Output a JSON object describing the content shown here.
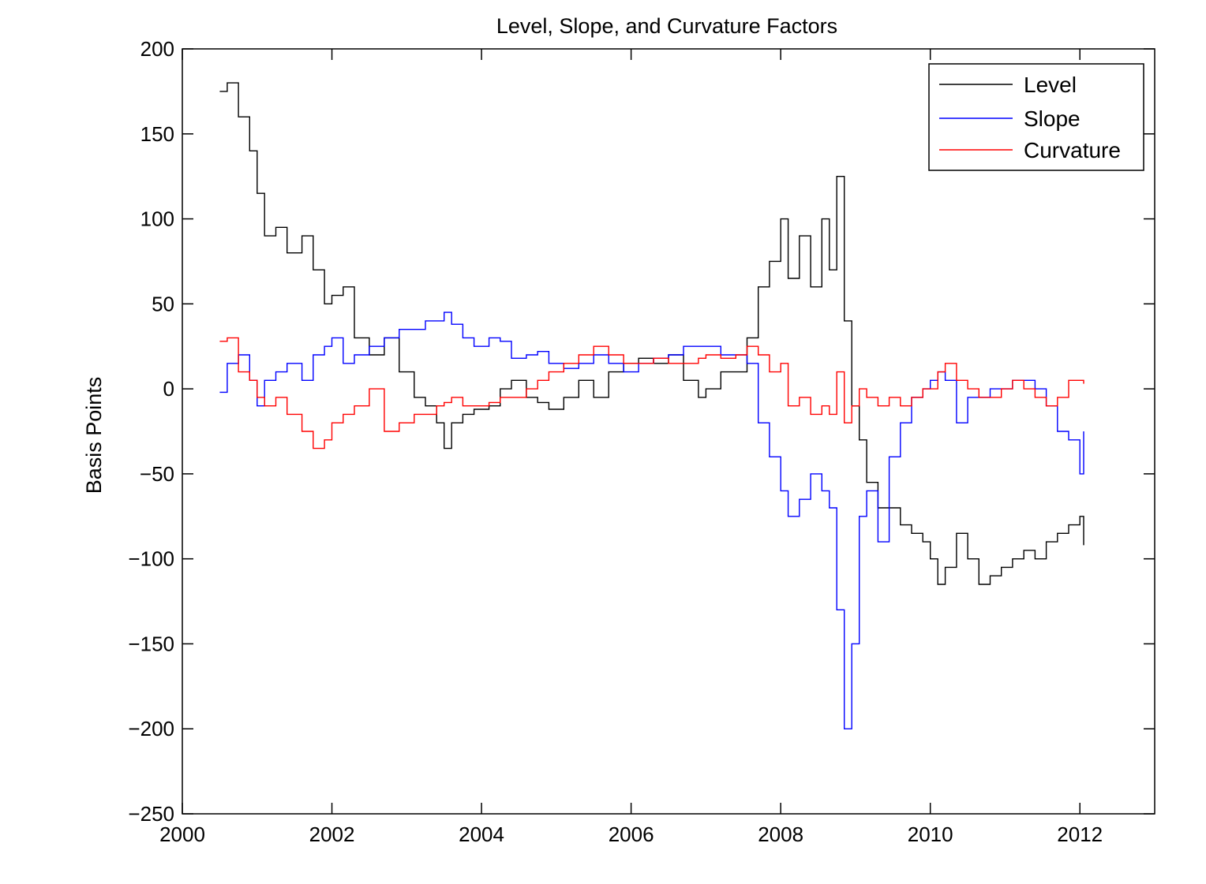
{
  "chart_data": {
    "type": "line",
    "title": "Level, Slope, and Curvature Factors",
    "xlabel": "",
    "ylabel": "Basis Points",
    "xlim": [
      2000,
      2013
    ],
    "ylim": [
      -250,
      200
    ],
    "x_ticks": [
      2000,
      2002,
      2004,
      2006,
      2008,
      2010,
      2012
    ],
    "x_tick_labels": [
      "2000",
      "2002",
      "2004",
      "2006",
      "2008",
      "2010",
      "2012"
    ],
    "y_ticks": [
      200,
      150,
      100,
      50,
      0,
      -50,
      -100,
      -150,
      -200,
      -250
    ],
    "y_tick_labels": [
      "200",
      "150",
      "100",
      "50",
      "0",
      "−50",
      "−100",
      "−150",
      "−200",
      "−250"
    ],
    "grid": false,
    "legend_position": "top-right",
    "series": [
      {
        "name": "Level",
        "color": "#000000",
        "x": [
          2000.5,
          2000.6,
          2000.75,
          2000.9,
          2001.0,
          2001.1,
          2001.25,
          2001.4,
          2001.6,
          2001.75,
          2001.9,
          2002.0,
          2002.15,
          2002.3,
          2002.5,
          2002.7,
          2002.9,
          2003.1,
          2003.25,
          2003.4,
          2003.5,
          2003.6,
          2003.75,
          2003.9,
          2004.1,
          2004.25,
          2004.4,
          2004.6,
          2004.75,
          2004.9,
          2005.1,
          2005.3,
          2005.5,
          2005.7,
          2005.9,
          2006.1,
          2006.3,
          2006.5,
          2006.7,
          2006.9,
          2007.0,
          2007.2,
          2007.4,
          2007.55,
          2007.7,
          2007.85,
          2008.0,
          2008.1,
          2008.25,
          2008.4,
          2008.55,
          2008.65,
          2008.75,
          2008.85,
          2008.95,
          2009.05,
          2009.15,
          2009.3,
          2009.45,
          2009.6,
          2009.75,
          2009.9,
          2010.0,
          2010.1,
          2010.2,
          2010.35,
          2010.5,
          2010.65,
          2010.8,
          2010.95,
          2011.1,
          2011.25,
          2011.4,
          2011.55,
          2011.7,
          2011.85,
          2012.0,
          2012.05
        ],
        "y": [
          175,
          180,
          160,
          140,
          115,
          90,
          95,
          80,
          90,
          70,
          50,
          55,
          60,
          30,
          20,
          30,
          10,
          -5,
          -10,
          -20,
          -35,
          -20,
          -15,
          -12,
          -10,
          0,
          5,
          -5,
          -8,
          -12,
          -5,
          5,
          -5,
          10,
          15,
          18,
          15,
          20,
          5,
          -5,
          0,
          10,
          10,
          30,
          60,
          75,
          100,
          65,
          90,
          60,
          100,
          70,
          125,
          40,
          -10,
          -30,
          -55,
          -70,
          -70,
          -80,
          -85,
          -90,
          -100,
          -115,
          -105,
          -85,
          -100,
          -115,
          -110,
          -105,
          -100,
          -95,
          -100,
          -90,
          -85,
          -80,
          -75,
          -92
        ]
      },
      {
        "name": "Slope",
        "color": "#0000ff",
        "x": [
          2000.5,
          2000.6,
          2000.75,
          2000.9,
          2001.0,
          2001.1,
          2001.25,
          2001.4,
          2001.6,
          2001.75,
          2001.9,
          2002.0,
          2002.15,
          2002.3,
          2002.5,
          2002.7,
          2002.9,
          2003.1,
          2003.25,
          2003.4,
          2003.5,
          2003.6,
          2003.75,
          2003.9,
          2004.1,
          2004.25,
          2004.4,
          2004.6,
          2004.75,
          2004.9,
          2005.1,
          2005.3,
          2005.5,
          2005.7,
          2005.9,
          2006.1,
          2006.3,
          2006.5,
          2006.7,
          2006.9,
          2007.0,
          2007.2,
          2007.4,
          2007.55,
          2007.7,
          2007.85,
          2008.0,
          2008.1,
          2008.25,
          2008.4,
          2008.55,
          2008.65,
          2008.75,
          2008.85,
          2008.95,
          2009.05,
          2009.15,
          2009.3,
          2009.45,
          2009.6,
          2009.75,
          2009.9,
          2010.0,
          2010.1,
          2010.2,
          2010.35,
          2010.5,
          2010.65,
          2010.8,
          2010.95,
          2011.1,
          2011.25,
          2011.4,
          2011.55,
          2011.7,
          2011.85,
          2012.0,
          2012.05
        ],
        "y": [
          -2,
          15,
          20,
          5,
          -10,
          5,
          10,
          15,
          5,
          20,
          25,
          30,
          15,
          20,
          25,
          30,
          35,
          35,
          40,
          40,
          45,
          38,
          30,
          25,
          30,
          28,
          18,
          20,
          22,
          15,
          12,
          15,
          20,
          15,
          10,
          15,
          18,
          20,
          25,
          25,
          25,
          20,
          20,
          15,
          -20,
          -40,
          -60,
          -75,
          -65,
          -50,
          -60,
          -70,
          -130,
          -200,
          -150,
          -75,
          -60,
          -90,
          -40,
          -20,
          -5,
          0,
          5,
          10,
          5,
          -20,
          -5,
          -5,
          0,
          0,
          5,
          5,
          0,
          -10,
          -25,
          -30,
          -50,
          -25
        ]
      },
      {
        "name": "Curvature",
        "color": "#ff0000",
        "x": [
          2000.5,
          2000.6,
          2000.75,
          2000.9,
          2001.0,
          2001.1,
          2001.25,
          2001.4,
          2001.6,
          2001.75,
          2001.9,
          2002.0,
          2002.15,
          2002.3,
          2002.5,
          2002.7,
          2002.9,
          2003.1,
          2003.25,
          2003.4,
          2003.5,
          2003.6,
          2003.75,
          2003.9,
          2004.1,
          2004.25,
          2004.4,
          2004.6,
          2004.75,
          2004.9,
          2005.1,
          2005.3,
          2005.5,
          2005.7,
          2005.9,
          2006.1,
          2006.3,
          2006.5,
          2006.7,
          2006.9,
          2007.0,
          2007.2,
          2007.4,
          2007.55,
          2007.7,
          2007.85,
          2008.0,
          2008.1,
          2008.25,
          2008.4,
          2008.55,
          2008.65,
          2008.75,
          2008.85,
          2008.95,
          2009.05,
          2009.15,
          2009.3,
          2009.45,
          2009.6,
          2009.75,
          2009.9,
          2010.0,
          2010.1,
          2010.2,
          2010.35,
          2010.5,
          2010.65,
          2010.8,
          2010.95,
          2011.1,
          2011.25,
          2011.4,
          2011.55,
          2011.7,
          2011.85,
          2012.0,
          2012.05
        ],
        "y": [
          28,
          30,
          10,
          5,
          -5,
          -10,
          -5,
          -15,
          -25,
          -35,
          -30,
          -20,
          -15,
          -10,
          0,
          -25,
          -20,
          -15,
          -15,
          -10,
          -8,
          -5,
          -10,
          -10,
          -8,
          -5,
          -5,
          0,
          5,
          10,
          15,
          20,
          25,
          20,
          15,
          15,
          18,
          15,
          15,
          18,
          20,
          18,
          20,
          25,
          20,
          10,
          15,
          -10,
          -5,
          -15,
          -10,
          -15,
          10,
          -20,
          -10,
          0,
          -5,
          -10,
          -5,
          -10,
          -5,
          0,
          0,
          10,
          15,
          5,
          0,
          -5,
          -5,
          0,
          5,
          0,
          -5,
          -10,
          -5,
          5,
          5,
          3
        ]
      }
    ]
  }
}
